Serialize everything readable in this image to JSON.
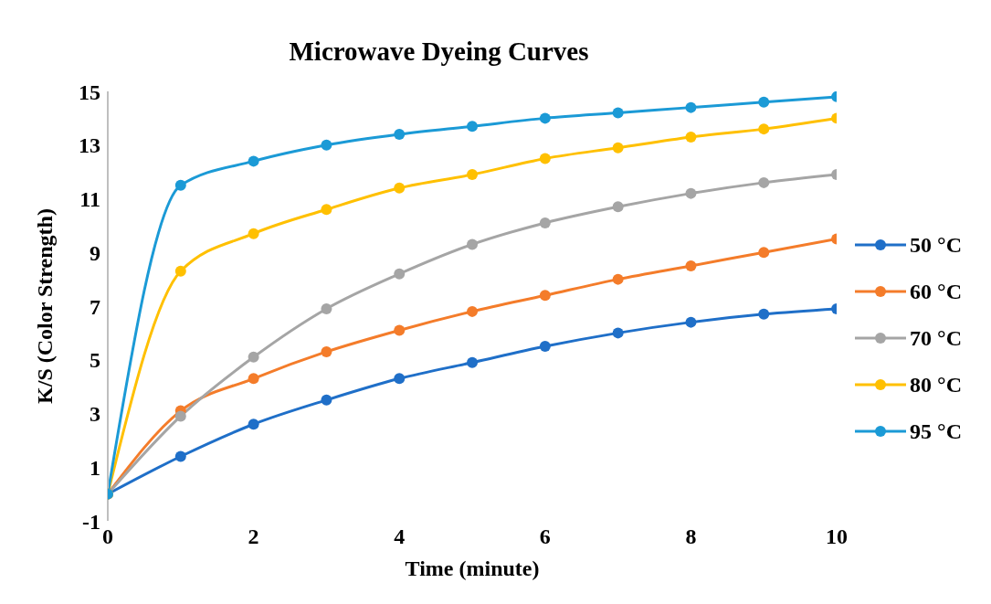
{
  "chart_data": {
    "type": "line",
    "title": "Microwave Dyeing Curves",
    "xlabel": "Time (minute)",
    "ylabel": "K/S (Color Strength)",
    "x": [
      0,
      1,
      2,
      3,
      4,
      5,
      6,
      7,
      8,
      9,
      10
    ],
    "xlim": [
      0,
      10
    ],
    "xticks": [
      0,
      2,
      4,
      6,
      8,
      10
    ],
    "ylim": [
      -1,
      15
    ],
    "yticks": [
      -1,
      1,
      3,
      5,
      7,
      9,
      11,
      13,
      15
    ],
    "grid": false,
    "legend": "right",
    "marker": "circle",
    "line_style": "solid",
    "series": [
      {
        "name": "50 °C",
        "color": "#1f6fc8",
        "values": [
          0,
          1.4,
          2.6,
          3.5,
          4.3,
          4.9,
          5.5,
          6.0,
          6.4,
          6.7,
          6.9
        ]
      },
      {
        "name": "60 °C",
        "color": "#f47c2a",
        "values": [
          0,
          3.1,
          4.3,
          5.3,
          6.1,
          6.8,
          7.4,
          8.0,
          8.5,
          9.0,
          9.5
        ]
      },
      {
        "name": "70 °C",
        "color": "#a5a5a5",
        "values": [
          0,
          2.9,
          5.1,
          6.9,
          8.2,
          9.3,
          10.1,
          10.7,
          11.2,
          11.6,
          11.9
        ]
      },
      {
        "name": "80 °C",
        "color": "#ffc000",
        "values": [
          0,
          8.3,
          9.7,
          10.6,
          11.4,
          11.9,
          12.5,
          12.9,
          13.3,
          13.6,
          14.0
        ]
      },
      {
        "name": "95 °C",
        "color": "#1b9ad6",
        "values": [
          0,
          11.5,
          12.4,
          13.0,
          13.4,
          13.7,
          14.0,
          14.2,
          14.4,
          14.6,
          14.8
        ]
      }
    ]
  }
}
